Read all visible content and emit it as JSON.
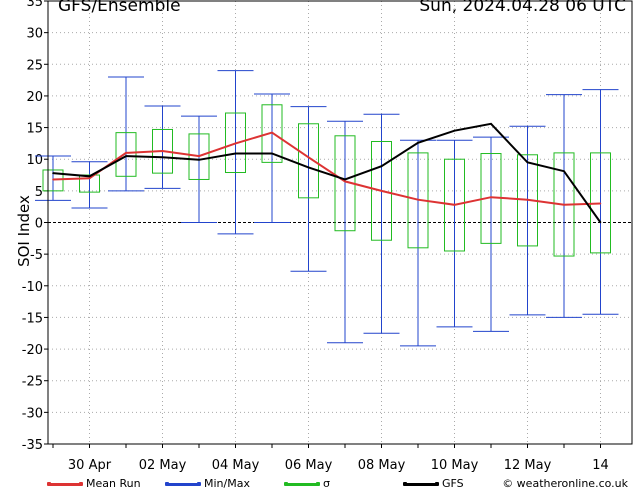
{
  "header": {
    "title": "GFS/Ensemble",
    "date": "Sun, 2024.04.28  06 UTC"
  },
  "legend": {
    "mean": "Mean Run",
    "minmax": "Min/Max",
    "sigma": "σ",
    "gfs": "GFS",
    "credit": "© weatheronline.co.uk"
  },
  "colors": {
    "mean": "#dd3333",
    "minmax": "#2244cc",
    "sigma": "#22bb22",
    "gfs": "#000000",
    "grid": "#aaaaaa"
  },
  "chart_data": {
    "type": "line",
    "ylabel": "SOI Index",
    "ylim": [
      -35,
      35
    ],
    "yticks": [
      -35,
      -30,
      -25,
      -20,
      -15,
      -10,
      -5,
      0,
      5,
      10,
      15,
      20,
      25,
      30,
      35
    ],
    "x_range_days": [
      0,
      16
    ],
    "xticks": [
      {
        "day": 1,
        "label": "30 Apr"
      },
      {
        "day": 3,
        "label": "02 May"
      },
      {
        "day": 5,
        "label": "04 May"
      },
      {
        "day": 7,
        "label": "06 May"
      },
      {
        "day": 9,
        "label": "08 May"
      },
      {
        "day": 11,
        "label": "10 May"
      },
      {
        "day": 13,
        "label": "12 May"
      },
      {
        "day": 15,
        "label": "14"
      }
    ],
    "ensemble": [
      {
        "day": 0.0,
        "min": 3.5,
        "max": 10.5,
        "sigma_lo": 5.0,
        "sigma_hi": 8.3
      },
      {
        "day": 1.0,
        "min": 2.3,
        "max": 9.6,
        "sigma_lo": 4.8,
        "sigma_hi": 7.5
      },
      {
        "day": 2.0,
        "min": 5.0,
        "max": 23.0,
        "sigma_lo": 7.3,
        "sigma_hi": 14.2
      },
      {
        "day": 3.0,
        "min": 5.4,
        "max": 18.4,
        "sigma_lo": 7.8,
        "sigma_hi": 14.7
      },
      {
        "day": 4.0,
        "min": 0.0,
        "max": 16.8,
        "sigma_lo": 6.8,
        "sigma_hi": 14.0
      },
      {
        "day": 5.0,
        "min": -1.8,
        "max": 24.0,
        "sigma_lo": 7.9,
        "sigma_hi": 17.3
      },
      {
        "day": 6.0,
        "min": 0.0,
        "max": 20.3,
        "sigma_lo": 9.5,
        "sigma_hi": 18.6
      },
      {
        "day": 7.0,
        "min": -7.7,
        "max": 18.3,
        "sigma_lo": 3.9,
        "sigma_hi": 15.6
      },
      {
        "day": 8.0,
        "min": -19.0,
        "max": 16.0,
        "sigma_lo": -1.3,
        "sigma_hi": 13.7
      },
      {
        "day": 9.0,
        "min": -17.5,
        "max": 17.1,
        "sigma_lo": -2.8,
        "sigma_hi": 12.8
      },
      {
        "day": 10.0,
        "min": -19.5,
        "max": 13.0,
        "sigma_lo": -4.0,
        "sigma_hi": 11.0
      },
      {
        "day": 11.0,
        "min": -16.5,
        "max": 13.0,
        "sigma_lo": -4.5,
        "sigma_hi": 10.0
      },
      {
        "day": 12.0,
        "min": -17.2,
        "max": 13.5,
        "sigma_lo": -3.3,
        "sigma_hi": 10.9
      },
      {
        "day": 13.0,
        "min": -14.6,
        "max": 15.2,
        "sigma_lo": -3.7,
        "sigma_hi": 10.7
      },
      {
        "day": 14.0,
        "min": -15.0,
        "max": 20.2,
        "sigma_lo": -5.3,
        "sigma_hi": 11.0
      },
      {
        "day": 15.0,
        "min": -14.5,
        "max": 21.0,
        "sigma_lo": -4.8,
        "sigma_hi": 11.0
      }
    ],
    "series": [
      {
        "name": "Mean Run",
        "color": "#dd3333",
        "points": [
          [
            0.0,
            6.8
          ],
          [
            1.0,
            7.0
          ],
          [
            2.0,
            11.0
          ],
          [
            3.0,
            11.3
          ],
          [
            4.0,
            10.5
          ],
          [
            5.0,
            12.5
          ],
          [
            6.0,
            14.2
          ],
          [
            7.0,
            10.3
          ],
          [
            8.0,
            6.5
          ],
          [
            9.0,
            5.0
          ],
          [
            10.0,
            3.6
          ],
          [
            11.0,
            2.8
          ],
          [
            12.0,
            4.0
          ],
          [
            13.0,
            3.6
          ],
          [
            14.0,
            2.8
          ],
          [
            15.0,
            3.0
          ]
        ]
      },
      {
        "name": "GFS",
        "color": "#000000",
        "points": [
          [
            0.0,
            7.8
          ],
          [
            1.0,
            7.3
          ],
          [
            2.0,
            10.5
          ],
          [
            3.0,
            10.3
          ],
          [
            4.0,
            9.9
          ],
          [
            5.0,
            10.9
          ],
          [
            6.0,
            10.9
          ],
          [
            7.0,
            8.7
          ],
          [
            8.0,
            6.8
          ],
          [
            9.0,
            8.9
          ],
          [
            10.0,
            12.6
          ],
          [
            11.0,
            14.5
          ],
          [
            12.0,
            15.6
          ],
          [
            13.0,
            9.5
          ],
          [
            14.0,
            8.1
          ],
          [
            15.0,
            0.0
          ]
        ]
      }
    ],
    "grid": true
  }
}
